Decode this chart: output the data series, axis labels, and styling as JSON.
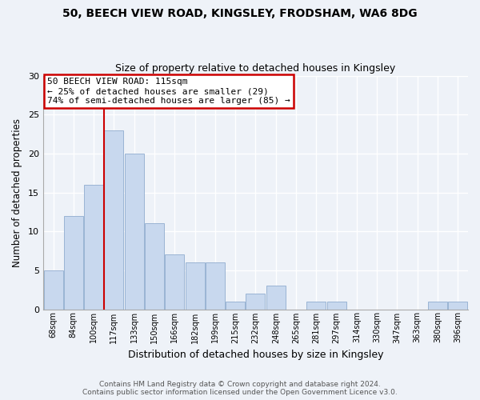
{
  "title1": "50, BEECH VIEW ROAD, KINGSLEY, FRODSHAM, WA6 8DG",
  "title2": "Size of property relative to detached houses in Kingsley",
  "xlabel": "Distribution of detached houses by size in Kingsley",
  "ylabel": "Number of detached properties",
  "bar_labels": [
    "68sqm",
    "84sqm",
    "100sqm",
    "117sqm",
    "133sqm",
    "150sqm",
    "166sqm",
    "182sqm",
    "199sqm",
    "215sqm",
    "232sqm",
    "248sqm",
    "265sqm",
    "281sqm",
    "297sqm",
    "314sqm",
    "330sqm",
    "347sqm",
    "363sqm",
    "380sqm",
    "396sqm"
  ],
  "bar_values": [
    5,
    12,
    16,
    23,
    20,
    11,
    7,
    6,
    6,
    1,
    2,
    3,
    0,
    1,
    1,
    0,
    0,
    0,
    0,
    1,
    1
  ],
  "bar_color": "#c8d8ee",
  "bar_edge_color": "#9ab4d4",
  "property_line_index": 3,
  "annotation_title": "50 BEECH VIEW ROAD: 115sqm",
  "annotation_line1": "← 25% of detached houses are smaller (29)",
  "annotation_line2": "74% of semi-detached houses are larger (85) →",
  "annotation_box_color": "#ffffff",
  "annotation_box_edge": "#cc0000",
  "property_line_color": "#cc0000",
  "ylim": [
    0,
    30
  ],
  "yticks": [
    0,
    5,
    10,
    15,
    20,
    25,
    30
  ],
  "footer1": "Contains HM Land Registry data © Crown copyright and database right 2024.",
  "footer2": "Contains public sector information licensed under the Open Government Licence v3.0.",
  "bg_color": "#eef2f8",
  "grid_color": "#ffffff",
  "spine_color": "#aaaaaa"
}
